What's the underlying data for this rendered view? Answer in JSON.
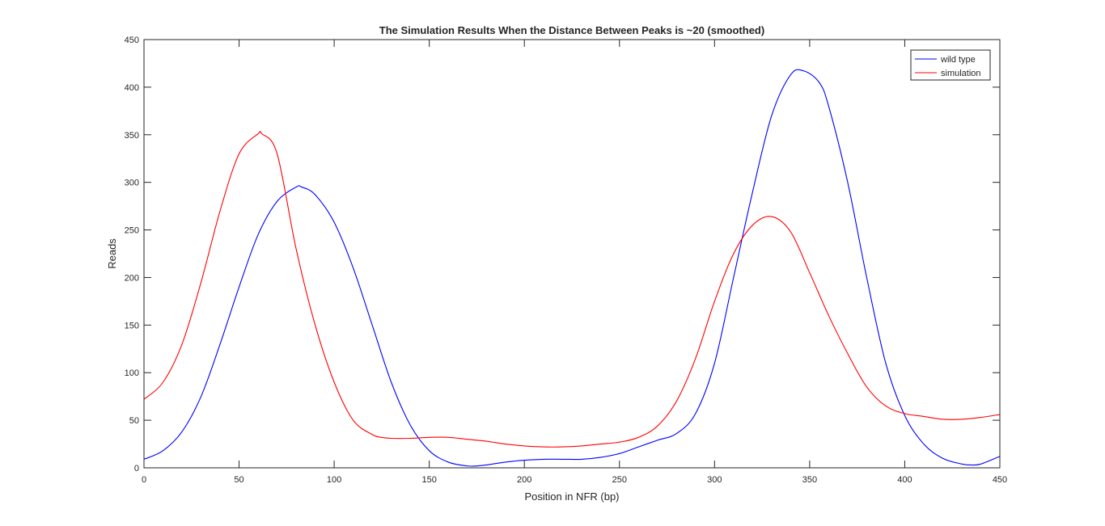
{
  "chart_data": {
    "type": "line",
    "title": "The Simulation Results When the Distance Between Peaks is ~20 (smoothed)",
    "xlabel": "Position in NFR (bp)",
    "ylabel": "Reads",
    "xlim": [
      0,
      450
    ],
    "ylim": [
      0,
      450
    ],
    "xticks": [
      0,
      50,
      100,
      150,
      200,
      250,
      300,
      350,
      400,
      450
    ],
    "yticks": [
      0,
      50,
      100,
      150,
      200,
      250,
      300,
      350,
      400,
      450
    ],
    "grid": false,
    "legend_position": "top-right",
    "series": [
      {
        "name": "wild type",
        "color": "#0000ff",
        "x": [
          0,
          10,
          20,
          30,
          40,
          50,
          60,
          70,
          80,
          83,
          90,
          100,
          110,
          120,
          130,
          140,
          150,
          160,
          170,
          175,
          180,
          190,
          200,
          210,
          220,
          230,
          240,
          250,
          260,
          270,
          280,
          290,
          300,
          310,
          320,
          330,
          340,
          347,
          355,
          360,
          370,
          380,
          390,
          400,
          410,
          420,
          430,
          435,
          440,
          450
        ],
        "y": [
          9,
          18,
          38,
          75,
          130,
          190,
          245,
          280,
          295,
          295,
          287,
          258,
          210,
          150,
          90,
          45,
          18,
          6,
          2,
          2,
          3,
          6,
          8,
          9,
          9,
          9,
          11,
          15,
          22,
          29,
          36,
          57,
          110,
          200,
          290,
          370,
          413,
          417,
          405,
          380,
          300,
          200,
          110,
          55,
          25,
          10,
          4,
          3,
          4,
          12
        ]
      },
      {
        "name": "simulation",
        "color": "#ff0000",
        "x": [
          0,
          10,
          20,
          30,
          40,
          50,
          60,
          62,
          70,
          80,
          90,
          100,
          110,
          120,
          125,
          130,
          140,
          150,
          160,
          170,
          180,
          190,
          200,
          210,
          220,
          230,
          240,
          250,
          260,
          270,
          280,
          290,
          300,
          310,
          320,
          330,
          340,
          350,
          360,
          370,
          380,
          390,
          400,
          410,
          420,
          430,
          440,
          450
        ],
        "y": [
          72,
          90,
          130,
          195,
          270,
          330,
          351,
          351,
          330,
          230,
          150,
          90,
          50,
          35,
          32,
          31,
          31,
          32,
          32,
          30,
          28,
          25,
          23,
          22,
          22,
          23,
          25,
          27,
          32,
          44,
          70,
          115,
          175,
          225,
          255,
          264,
          248,
          205,
          160,
          120,
          85,
          65,
          57,
          54,
          51,
          51,
          53,
          56
        ]
      }
    ]
  }
}
